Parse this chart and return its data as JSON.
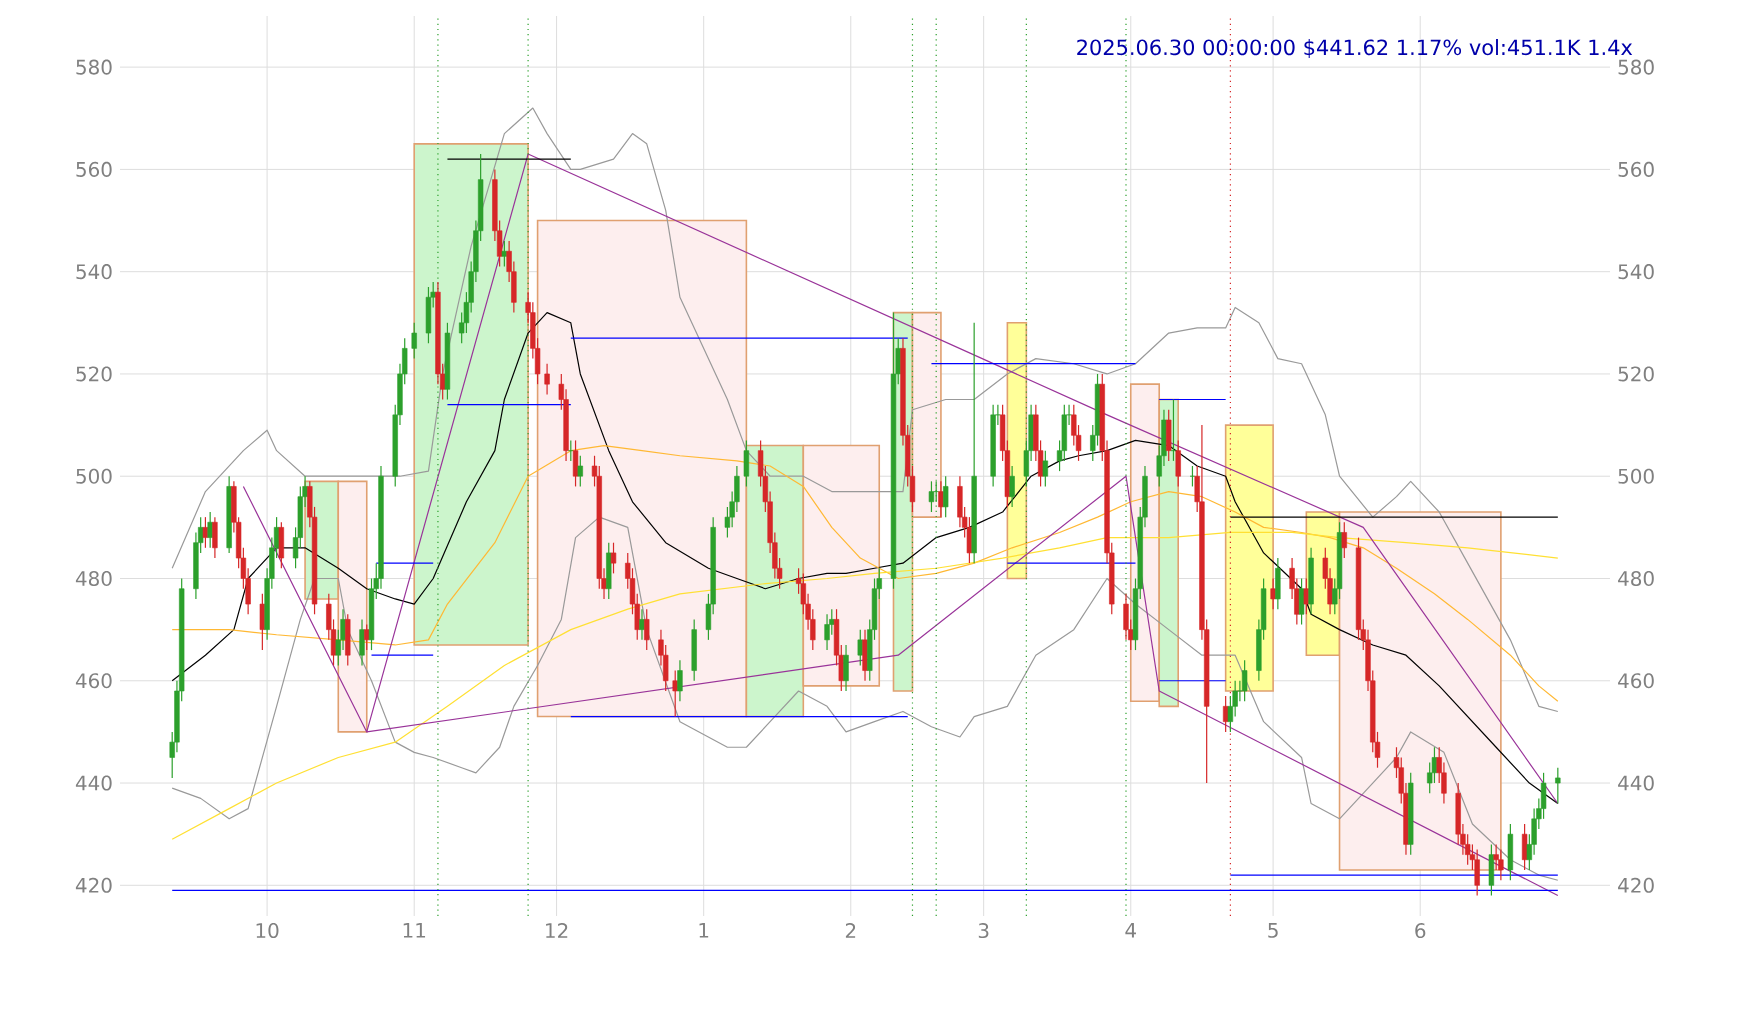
{
  "chart_data": {
    "type": "candlestick",
    "title": "2025.06.30 00:00:00 $441.62 1.17% vol:451.1K 1.4x",
    "x": [
      "2024-09-11",
      "2024-09-12",
      "2024-09-13",
      "2024-09-16",
      "2024-09-17",
      "2024-09-18",
      "2024-09-19",
      "2024-09-20",
      "2024-09-23",
      "2024-09-24",
      "2024-09-25",
      "2024-09-26",
      "2024-09-27",
      "2024-09-30",
      "2024-10-01",
      "2024-10-02",
      "2024-10-03",
      "2024-10-04",
      "2024-10-07",
      "2024-10-08",
      "2024-10-09",
      "2024-10-10",
      "2024-10-11",
      "2024-10-14",
      "2024-10-15",
      "2024-10-16",
      "2024-10-17",
      "2024-10-18",
      "2024-10-21",
      "2024-10-22",
      "2024-10-23",
      "2024-10-24",
      "2024-10-25",
      "2024-10-28",
      "2024-10-29",
      "2024-10-30",
      "2024-11-01",
      "2024-11-04",
      "2024-11-05",
      "2024-11-06",
      "2024-11-07",
      "2024-11-08",
      "2024-11-11",
      "2024-11-12",
      "2024-11-13",
      "2024-11-14",
      "2024-11-15",
      "2024-11-18",
      "2024-11-19",
      "2024-11-20",
      "2024-11-21",
      "2024-11-22",
      "2024-11-25",
      "2024-11-26",
      "2024-11-27",
      "2024-11-29",
      "2024-12-02",
      "2024-12-03",
      "2024-12-04",
      "2024-12-05",
      "2024-12-06",
      "2024-12-09",
      "2024-12-10",
      "2024-12-11",
      "2024-12-12",
      "2024-12-13",
      "2024-12-16",
      "2024-12-17",
      "2024-12-18",
      "2024-12-19",
      "2024-12-20",
      "2024-12-23",
      "2024-12-24",
      "2024-12-26",
      "2024-12-27",
      "2024-12-30",
      "2025-01-02",
      "2025-01-03",
      "2025-01-06",
      "2025-01-07",
      "2025-01-08",
      "2025-01-10",
      "2025-01-13",
      "2025-01-14",
      "2025-01-15",
      "2025-01-16",
      "2025-01-17",
      "2025-01-21",
      "2025-01-22",
      "2025-01-23",
      "2025-01-24",
      "2025-01-27",
      "2025-01-28",
      "2025-01-29",
      "2025-01-30",
      "2025-01-31",
      "2025-02-03",
      "2025-02-04",
      "2025-02-05",
      "2025-02-06",
      "2025-02-07",
      "2025-02-10",
      "2025-02-11",
      "2025-02-12",
      "2025-02-13",
      "2025-02-14",
      "2025-02-18",
      "2025-02-19",
      "2025-02-20",
      "2025-02-21",
      "2025-02-24",
      "2025-02-25",
      "2025-02-26",
      "2025-02-27",
      "2025-03-03",
      "2025-03-04",
      "2025-03-05",
      "2025-03-06",
      "2025-03-07",
      "2025-03-10",
      "2025-03-11",
      "2025-03-12",
      "2025-03-13",
      "2025-03-14",
      "2025-03-17",
      "2025-03-18",
      "2025-03-19",
      "2025-03-20",
      "2025-03-21",
      "2025-03-24",
      "2025-03-25",
      "2025-03-26",
      "2025-03-27",
      "2025-03-28",
      "2025-03-31",
      "2025-04-01",
      "2025-04-02",
      "2025-04-03",
      "2025-04-04",
      "2025-04-07",
      "2025-04-08",
      "2025-04-09",
      "2025-04-10",
      "2025-04-11",
      "2025-04-14",
      "2025-04-15",
      "2025-04-16",
      "2025-04-17",
      "2025-04-21",
      "2025-04-22",
      "2025-04-23",
      "2025-04-24",
      "2025-04-25",
      "2025-04-28",
      "2025-04-29",
      "2025-05-01",
      "2025-05-02",
      "2025-05-05",
      "2025-05-06",
      "2025-05-07",
      "2025-05-08",
      "2025-05-09",
      "2025-05-12",
      "2025-05-13",
      "2025-05-14",
      "2025-05-15",
      "2025-05-16",
      "2025-05-19",
      "2025-05-20",
      "2025-05-21",
      "2025-05-22",
      "2025-05-23",
      "2025-05-27",
      "2025-05-28",
      "2025-05-29",
      "2025-05-30",
      "2025-06-03",
      "2025-06-04",
      "2025-06-05",
      "2025-06-06",
      "2025-06-09",
      "2025-06-10",
      "2025-06-11",
      "2025-06-12",
      "2025-06-13",
      "2025-06-16",
      "2025-06-17",
      "2025-06-18",
      "2025-06-20",
      "2025-06-23",
      "2025-06-24",
      "2025-06-25",
      "2025-06-26",
      "2025-06-27",
      "2025-06-30"
    ],
    "ohlc": [
      [
        445,
        450,
        441,
        448
      ],
      [
        448,
        460,
        446,
        458
      ],
      [
        458,
        480,
        456,
        478
      ],
      [
        478,
        489,
        476,
        487
      ],
      [
        487,
        492,
        485,
        490
      ],
      [
        490,
        492,
        486,
        488
      ],
      [
        488,
        493,
        486,
        491
      ],
      [
        491,
        492,
        484,
        486
      ],
      [
        486,
        500,
        485,
        498
      ],
      [
        498,
        499,
        489,
        491
      ],
      [
        491,
        492,
        482,
        484
      ],
      [
        484,
        486,
        478,
        480
      ],
      [
        480,
        482,
        473,
        475
      ],
      [
        475,
        477,
        466,
        470
      ],
      [
        470,
        482,
        468,
        480
      ],
      [
        480,
        488,
        478,
        486
      ],
      [
        486,
        492,
        484,
        490
      ],
      [
        490,
        491,
        482,
        484
      ],
      [
        484,
        490,
        482,
        488
      ],
      [
        488,
        498,
        486,
        496
      ],
      [
        496,
        500,
        494,
        498
      ],
      [
        498,
        499,
        490,
        492
      ],
      [
        492,
        494,
        473,
        475
      ],
      [
        475,
        477,
        468,
        470
      ],
      [
        470,
        472,
        463,
        465
      ],
      [
        465,
        470,
        463,
        468
      ],
      [
        468,
        474,
        466,
        472
      ],
      [
        472,
        473,
        463,
        465
      ],
      [
        465,
        472,
        463,
        470
      ],
      [
        470,
        471,
        466,
        468
      ],
      [
        468,
        480,
        466,
        478
      ],
      [
        478,
        483,
        476,
        480
      ],
      [
        480,
        502,
        478,
        500
      ],
      [
        500,
        514,
        498,
        512
      ],
      [
        512,
        522,
        510,
        520
      ],
      [
        520,
        527,
        518,
        525
      ],
      [
        525,
        530,
        523,
        528
      ],
      [
        528,
        537,
        526,
        535
      ],
      [
        535,
        538,
        533,
        536
      ],
      [
        536,
        538,
        518,
        520
      ],
      [
        520,
        522,
        515,
        517
      ],
      [
        517,
        530,
        515,
        528
      ],
      [
        528,
        532,
        526,
        530
      ],
      [
        530,
        536,
        528,
        534
      ],
      [
        534,
        542,
        532,
        540
      ],
      [
        540,
        550,
        538,
        548
      ],
      [
        548,
        563,
        546,
        558
      ],
      [
        558,
        560,
        546,
        548
      ],
      [
        548,
        550,
        541,
        543
      ],
      [
        543,
        546,
        541,
        544
      ],
      [
        544,
        546,
        538,
        540
      ],
      [
        540,
        542,
        532,
        534
      ],
      [
        534,
        536,
        530,
        532
      ],
      [
        532,
        534,
        523,
        525
      ],
      [
        525,
        527,
        518,
        520
      ],
      [
        520,
        522,
        516,
        518
      ],
      [
        518,
        520,
        513,
        515
      ],
      [
        515,
        517,
        503,
        505
      ],
      [
        505,
        507,
        503,
        505
      ],
      [
        505,
        507,
        498,
        500
      ],
      [
        500,
        504,
        498,
        502
      ],
      [
        502,
        504,
        498,
        500
      ],
      [
        500,
        502,
        478,
        480
      ],
      [
        480,
        482,
        476,
        478
      ],
      [
        478,
        487,
        476,
        485
      ],
      [
        485,
        487,
        481,
        483
      ],
      [
        483,
        485,
        478,
        480
      ],
      [
        480,
        482,
        473,
        475
      ],
      [
        475,
        477,
        468,
        470
      ],
      [
        470,
        474,
        468,
        472
      ],
      [
        472,
        474,
        466,
        468
      ],
      [
        468,
        470,
        463,
        465
      ],
      [
        465,
        467,
        458,
        460
      ],
      [
        460,
        462,
        453,
        458
      ],
      [
        458,
        464,
        456,
        462
      ],
      [
        462,
        472,
        460,
        470
      ],
      [
        470,
        477,
        468,
        475
      ],
      [
        475,
        492,
        473,
        490
      ],
      [
        490,
        494,
        488,
        492
      ],
      [
        492,
        497,
        490,
        495
      ],
      [
        495,
        502,
        493,
        500
      ],
      [
        500,
        507,
        498,
        505
      ],
      [
        505,
        507,
        498,
        500
      ],
      [
        500,
        502,
        493,
        495
      ],
      [
        495,
        497,
        485,
        487
      ],
      [
        487,
        489,
        480,
        482
      ],
      [
        482,
        484,
        478,
        480
      ],
      [
        480,
        482,
        477,
        479
      ],
      [
        479,
        481,
        473,
        475
      ],
      [
        475,
        477,
        470,
        472
      ],
      [
        472,
        474,
        466,
        468
      ],
      [
        468,
        473,
        466,
        471
      ],
      [
        471,
        474,
        469,
        472
      ],
      [
        472,
        474,
        463,
        465
      ],
      [
        465,
        467,
        458,
        460
      ],
      [
        460,
        467,
        458,
        465
      ],
      [
        465,
        470,
        463,
        468
      ],
      [
        468,
        470,
        460,
        462
      ],
      [
        462,
        472,
        460,
        470
      ],
      [
        470,
        480,
        468,
        478
      ],
      [
        478,
        482,
        476,
        480
      ],
      [
        480,
        532,
        478,
        520
      ],
      [
        520,
        527,
        518,
        525
      ],
      [
        525,
        527,
        506,
        508
      ],
      [
        508,
        510,
        498,
        500
      ],
      [
        500,
        502,
        493,
        495
      ],
      [
        495,
        499,
        493,
        497
      ],
      [
        497,
        499,
        495,
        497
      ],
      [
        497,
        499,
        492,
        494
      ],
      [
        494,
        500,
        492,
        498
      ],
      [
        498,
        500,
        490,
        492
      ],
      [
        492,
        494,
        488,
        490
      ],
      [
        490,
        492,
        483,
        485
      ],
      [
        485,
        530,
        483,
        500
      ],
      [
        500,
        514,
        498,
        512
      ],
      [
        512,
        514,
        510,
        512
      ],
      [
        512,
        514,
        503,
        505
      ],
      [
        505,
        507,
        494,
        496
      ],
      [
        496,
        502,
        494,
        500
      ],
      [
        500,
        507,
        498,
        505
      ],
      [
        505,
        514,
        503,
        512
      ],
      [
        512,
        514,
        503,
        505
      ],
      [
        505,
        507,
        498,
        500
      ],
      [
        500,
        505,
        498,
        503
      ],
      [
        503,
        507,
        501,
        505
      ],
      [
        505,
        514,
        503,
        512
      ],
      [
        512,
        514,
        510,
        512
      ],
      [
        512,
        514,
        506,
        508
      ],
      [
        508,
        510,
        503,
        505
      ],
      [
        505,
        510,
        503,
        508
      ],
      [
        508,
        520,
        506,
        518
      ],
      [
        518,
        520,
        503,
        505
      ],
      [
        505,
        507,
        483,
        485
      ],
      [
        485,
        487,
        473,
        475
      ],
      [
        475,
        477,
        468,
        470
      ],
      [
        470,
        472,
        466,
        468
      ],
      [
        468,
        480,
        466,
        478
      ],
      [
        478,
        494,
        476,
        492
      ],
      [
        492,
        502,
        490,
        500
      ],
      [
        500,
        506,
        498,
        504
      ],
      [
        504,
        513,
        502,
        511
      ],
      [
        511,
        513,
        503,
        505
      ],
      [
        505,
        515,
        503,
        505
      ],
      [
        505,
        507,
        498,
        500
      ],
      [
        500,
        502,
        498,
        500
      ],
      [
        500,
        502,
        493,
        495
      ],
      [
        495,
        510,
        468,
        470
      ],
      [
        470,
        472,
        440,
        455
      ],
      [
        455,
        457,
        450,
        452
      ],
      [
        452,
        457,
        450,
        455
      ],
      [
        455,
        460,
        453,
        458
      ],
      [
        458,
        460,
        456,
        458
      ],
      [
        458,
        464,
        456,
        462
      ],
      [
        462,
        472,
        460,
        470
      ],
      [
        470,
        480,
        468,
        478
      ],
      [
        478,
        480,
        474,
        476
      ],
      [
        476,
        484,
        474,
        482
      ],
      [
        482,
        484,
        476,
        478
      ],
      [
        478,
        480,
        471,
        473
      ],
      [
        473,
        480,
        471,
        478
      ],
      [
        478,
        480,
        473,
        475
      ],
      [
        475,
        486,
        473,
        484
      ],
      [
        484,
        486,
        478,
        480
      ],
      [
        480,
        482,
        473,
        475
      ],
      [
        475,
        480,
        473,
        478
      ],
      [
        478,
        491,
        476,
        489
      ],
      [
        489,
        491,
        484,
        486
      ],
      [
        486,
        488,
        468,
        470
      ],
      [
        470,
        472,
        466,
        468
      ],
      [
        468,
        470,
        458,
        460
      ],
      [
        460,
        462,
        446,
        448
      ],
      [
        448,
        450,
        443,
        445
      ],
      [
        445,
        447,
        441,
        443
      ],
      [
        443,
        445,
        436,
        438
      ],
      [
        438,
        440,
        426,
        428
      ],
      [
        428,
        442,
        426,
        440
      ],
      [
        440,
        444,
        438,
        442
      ],
      [
        442,
        447,
        440,
        445
      ],
      [
        445,
        447,
        440,
        442
      ],
      [
        442,
        444,
        436,
        438
      ],
      [
        438,
        440,
        428,
        430
      ],
      [
        430,
        432,
        426,
        428
      ],
      [
        428,
        430,
        424,
        426
      ],
      [
        426,
        428,
        423,
        425
      ],
      [
        425,
        427,
        418,
        420
      ],
      [
        420,
        428,
        418,
        426
      ],
      [
        426,
        428,
        423,
        425
      ],
      [
        425,
        427,
        421,
        423
      ],
      [
        423,
        432,
        421,
        430
      ],
      [
        430,
        432,
        423,
        425
      ],
      [
        425,
        430,
        423,
        428
      ],
      [
        428,
        435,
        426,
        433
      ],
      [
        433,
        437,
        431,
        435
      ],
      [
        435,
        442,
        433,
        440
      ],
      [
        440,
        443,
        436,
        441
      ]
    ],
    "series": [
      {
        "type": "area",
        "color": "#ccf5cc",
        "x": [
          "2024-10-09",
          "2024-10-16",
          "2024-10-16",
          "2024-10-09"
        ],
        "values": [
          499,
          499,
          476,
          476
        ]
      },
      {
        "type": "area",
        "color": "#fdeeee",
        "x": [
          "2024-10-16",
          "2024-10-22",
          "2024-10-22",
          "2024-10-16"
        ],
        "values": [
          499,
          499,
          450,
          450
        ]
      },
      {
        "type": "area",
        "color": "#ccf5cc",
        "x": [
          "2024-11-01",
          "2024-11-25",
          "2024-11-25",
          "2024-11-01"
        ],
        "values": [
          565,
          565,
          467,
          467
        ]
      },
      {
        "type": "area",
        "color": "#fdeeee",
        "x": [
          "2024-11-27",
          "2025-01-10",
          "2025-01-10",
          "2024-11-27"
        ],
        "values": [
          550,
          550,
          453,
          453
        ]
      },
      {
        "type": "area",
        "color": "#ccf5cc",
        "x": [
          "2025-01-10",
          "2025-01-22",
          "2025-01-22",
          "2025-01-10"
        ],
        "values": [
          506,
          506,
          453,
          453
        ]
      },
      {
        "type": "area",
        "color": "#fdeeee",
        "x": [
          "2025-01-22",
          "2025-02-07",
          "2025-02-07",
          "2025-01-22"
        ],
        "values": [
          506,
          506,
          459,
          459
        ]
      },
      {
        "type": "area",
        "color": "#ccf5cc",
        "x": [
          "2025-02-10",
          "2025-02-14",
          "2025-02-14",
          "2025-02-10"
        ],
        "values": [
          532,
          532,
          458,
          458
        ]
      },
      {
        "type": "area",
        "color": "#fdeeee",
        "x": [
          "2025-02-14",
          "2025-02-20",
          "2025-02-20",
          "2025-02-14"
        ],
        "values": [
          532,
          532,
          492,
          492
        ]
      },
      {
        "type": "area",
        "color": "#ffff99",
        "x": [
          "2025-03-06",
          "2025-03-10",
          "2025-03-10",
          "2025-03-06"
        ],
        "values": [
          530,
          530,
          480,
          480
        ]
      },
      {
        "type": "area",
        "color": "#fdeeee",
        "x": [
          "2025-04-01",
          "2025-04-07",
          "2025-04-07",
          "2025-04-01"
        ],
        "values": [
          518,
          518,
          456,
          456
        ]
      },
      {
        "type": "area",
        "color": "#ccf5cc",
        "x": [
          "2025-04-07",
          "2025-04-11",
          "2025-04-11",
          "2025-04-07"
        ],
        "values": [
          515,
          515,
          455,
          455
        ]
      },
      {
        "type": "area",
        "color": "#ffff99",
        "x": [
          "2025-04-21",
          "2025-05-01",
          "2025-05-01",
          "2025-04-21"
        ],
        "values": [
          510,
          510,
          458,
          458
        ]
      },
      {
        "type": "area",
        "color": "#ffff99",
        "x": [
          "2025-05-08",
          "2025-05-15",
          "2025-05-15",
          "2025-05-08"
        ],
        "values": [
          493,
          493,
          465,
          465
        ]
      },
      {
        "type": "area",
        "color": "#fdeeee",
        "x": [
          "2025-05-15",
          "2025-06-18",
          "2025-06-18",
          "2025-05-15"
        ],
        "values": [
          493,
          493,
          423,
          423
        ]
      },
      {
        "type": "line",
        "color": "#999999",
        "x": [
          "2024-09-11",
          "2024-09-18",
          "2024-09-26",
          "2024-10-01",
          "2024-10-03",
          "2024-10-09",
          "2024-10-17",
          "2024-10-23",
          "2024-10-29",
          "2024-11-04",
          "2024-11-07",
          "2024-11-13",
          "2024-11-20",
          "2024-11-26",
          "2024-11-29",
          "2024-12-04",
          "2024-12-06",
          "2024-12-13",
          "2024-12-17",
          "2024-12-20",
          "2024-12-24",
          "2024-12-27",
          "2025-01-06",
          "2025-01-10",
          "2025-01-15",
          "2025-01-22",
          "2025-01-28",
          "2025-01-31",
          "2025-02-06",
          "2025-02-12",
          "2025-02-14",
          "2025-02-21",
          "2025-02-27",
          "2025-03-06",
          "2025-03-12",
          "2025-03-20",
          "2025-03-27",
          "2025-04-02",
          "2025-04-09",
          "2025-04-15",
          "2025-04-21",
          "2025-04-23",
          "2025-04-28",
          "2025-05-02",
          "2025-05-07",
          "2025-05-12",
          "2025-05-15",
          "2025-05-22",
          "2025-05-27",
          "2025-05-30",
          "2025-06-05",
          "2025-06-11",
          "2025-06-20",
          "2025-06-26",
          "2025-06-30"
        ],
        "values": [
          482,
          497,
          505,
          509,
          505,
          500,
          500,
          500,
          500,
          501,
          520,
          545,
          567,
          572,
          567,
          560,
          560,
          562,
          567,
          565,
          552,
          535,
          515,
          505,
          500,
          500,
          497,
          497,
          497,
          497,
          513,
          515,
          515,
          520,
          523,
          522,
          520,
          522,
          528,
          529,
          529,
          533,
          530,
          523,
          522,
          512,
          500,
          492,
          496,
          499,
          493,
          483,
          468,
          455,
          454
        ]
      },
      {
        "type": "line",
        "color": "#999999",
        "x": [
          "2024-09-11",
          "2024-09-17",
          "2024-09-23",
          "2024-09-27",
          "2024-10-03",
          "2024-10-08",
          "2024-10-11",
          "2024-10-16",
          "2024-10-18",
          "2024-10-23",
          "2024-10-28",
          "2024-11-01",
          "2024-11-05",
          "2024-11-11",
          "2024-11-14",
          "2024-11-19",
          "2024-11-22",
          "2024-11-27",
          "2024-12-02",
          "2024-12-05",
          "2024-12-10",
          "2024-12-16",
          "2024-12-20",
          "2024-12-27",
          "2025-01-06",
          "2025-01-10",
          "2025-01-15",
          "2025-01-21",
          "2025-01-27",
          "2025-01-31",
          "2025-02-06",
          "2025-02-12",
          "2025-02-18",
          "2025-02-24",
          "2025-02-27",
          "2025-03-06",
          "2025-03-12",
          "2025-03-20",
          "2025-03-27",
          "2025-04-02",
          "2025-04-09",
          "2025-04-16",
          "2025-04-23",
          "2025-04-29",
          "2025-05-07",
          "2025-05-09",
          "2025-05-15",
          "2025-05-22",
          "2025-05-27",
          "2025-05-30",
          "2025-06-06",
          "2025-06-12",
          "2025-06-20",
          "2025-06-26",
          "2025-06-30"
        ],
        "values": [
          439,
          437,
          433,
          435,
          455,
          472,
          480,
          480,
          470,
          460,
          448,
          446,
          445,
          443,
          442,
          447,
          455,
          463,
          472,
          488,
          492,
          490,
          470,
          452,
          447,
          447,
          452,
          458,
          455,
          450,
          452,
          454,
          451,
          449,
          453,
          455,
          465,
          470,
          480,
          475,
          470,
          465,
          465,
          452,
          445,
          436,
          433,
          440,
          445,
          450,
          446,
          432,
          425,
          422,
          421
        ]
      },
      {
        "type": "line",
        "color": "#000000",
        "x": [
          "2024-09-11",
          "2024-09-18",
          "2024-09-24",
          "2024-09-27",
          "2024-10-03",
          "2024-10-09",
          "2024-10-16",
          "2024-10-22",
          "2024-10-28",
          "2024-11-01",
          "2024-11-05",
          "2024-11-12",
          "2024-11-18",
          "2024-11-20",
          "2024-11-25",
          "2024-11-29",
          "2024-12-04",
          "2024-12-06",
          "2024-12-12",
          "2024-12-17",
          "2024-12-24",
          "2025-01-02",
          "2025-01-08",
          "2025-01-14",
          "2025-01-21",
          "2025-01-27",
          "2025-01-31",
          "2025-02-06",
          "2025-02-12",
          "2025-02-19",
          "2025-02-26",
          "2025-03-05",
          "2025-03-11",
          "2025-03-17",
          "2025-03-21",
          "2025-03-27",
          "2025-04-02",
          "2025-04-09",
          "2025-04-15",
          "2025-04-21",
          "2025-04-23",
          "2025-04-29",
          "2025-05-07",
          "2025-05-09",
          "2025-05-15",
          "2025-05-22",
          "2025-05-29",
          "2025-06-05",
          "2025-06-11",
          "2025-06-17",
          "2025-06-24",
          "2025-06-30"
        ],
        "values": [
          460,
          465,
          470,
          480,
          486,
          486,
          482,
          478,
          476,
          475,
          480,
          495,
          505,
          515,
          528,
          532,
          530,
          520,
          505,
          495,
          487,
          482,
          480,
          478,
          480,
          481,
          481,
          482,
          483,
          488,
          490,
          493,
          500,
          503,
          504,
          505,
          507,
          506,
          502,
          500,
          495,
          485,
          478,
          473,
          470,
          467,
          465,
          459,
          453,
          447,
          440,
          436
        ]
      },
      {
        "type": "line",
        "color": "#ffb833",
        "x": [
          "2024-09-11",
          "2024-09-23",
          "2024-10-03",
          "2024-10-16",
          "2024-10-28",
          "2024-11-04",
          "2024-11-08",
          "2024-11-18",
          "2024-11-25",
          "2024-12-04",
          "2024-12-11",
          "2024-12-19",
          "2024-12-27",
          "2025-01-08",
          "2025-01-15",
          "2025-01-22",
          "2025-01-28",
          "2025-02-03",
          "2025-02-11",
          "2025-02-19",
          "2025-02-27",
          "2025-03-07",
          "2025-03-17",
          "2025-03-25",
          "2025-04-01",
          "2025-04-09",
          "2025-04-16",
          "2025-04-23",
          "2025-04-29",
          "2025-05-07",
          "2025-05-13",
          "2025-05-20",
          "2025-05-27",
          "2025-06-04",
          "2025-06-11",
          "2025-06-20",
          "2025-06-26",
          "2025-06-30"
        ],
        "values": [
          470,
          470,
          469,
          468,
          467,
          468,
          475,
          487,
          500,
          505,
          506,
          505,
          504,
          503,
          502,
          498,
          490,
          484,
          480,
          481,
          483,
          486,
          489,
          492,
          495,
          497,
          496,
          493,
          490,
          489,
          488,
          486,
          482,
          477,
          472,
          465,
          459,
          456
        ]
      },
      {
        "type": "line",
        "color": "#ffe033",
        "x": [
          "2024-09-11",
          "2024-09-23",
          "2024-10-03",
          "2024-10-16",
          "2024-10-28",
          "2024-11-08",
          "2024-11-20",
          "2024-12-04",
          "2024-12-16",
          "2024-12-27",
          "2025-01-14",
          "2025-01-27",
          "2025-02-06",
          "2025-02-19",
          "2025-03-05",
          "2025-03-17",
          "2025-03-27",
          "2025-04-09",
          "2025-04-22",
          "2025-05-05",
          "2025-05-15",
          "2025-05-29",
          "2025-06-11",
          "2025-06-30"
        ],
        "values": [
          429,
          435,
          440,
          445,
          448,
          455,
          463,
          470,
          474,
          477,
          479,
          480,
          481,
          482,
          484,
          486,
          488,
          488,
          489,
          489,
          488,
          487,
          486,
          484
        ]
      },
      {
        "type": "line",
        "color": "#993399",
        "x": [
          "2024-09-26",
          "2024-10-22",
          "2024-11-25"
        ],
        "values": [
          498,
          450,
          563
        ]
      },
      {
        "type": "line",
        "color": "#993399",
        "x": [
          "2024-11-25",
          "2025-03-27",
          "2025-05-20",
          "2025-06-30"
        ],
        "values": [
          563,
          512,
          490,
          436
        ]
      },
      {
        "type": "line",
        "color": "#993399",
        "x": [
          "2024-10-22",
          "2025-02-11",
          "2025-03-31",
          "2025-04-07",
          "2025-06-30"
        ],
        "values": [
          450,
          465,
          500,
          458,
          418
        ]
      },
      {
        "type": "line",
        "color": "#0000ff",
        "x": [
          "2024-10-24",
          "2024-11-05"
        ],
        "values": [
          483,
          483
        ]
      },
      {
        "type": "line",
        "color": "#0000ff",
        "x": [
          "2024-10-23",
          "2024-11-05"
        ],
        "values": [
          465,
          465
        ]
      },
      {
        "type": "line",
        "color": "#000000",
        "x": [
          "2024-11-08",
          "2024-12-04"
        ],
        "values": [
          562,
          562
        ]
      },
      {
        "type": "line",
        "color": "#0000ff",
        "x": [
          "2024-11-08",
          "2024-12-04"
        ],
        "values": [
          514,
          514
        ]
      },
      {
        "type": "line",
        "color": "#0000ff",
        "x": [
          "2024-12-04",
          "2025-02-13"
        ],
        "values": [
          527,
          527
        ]
      },
      {
        "type": "line",
        "color": "#0000ff",
        "x": [
          "2024-12-04",
          "2025-02-13"
        ],
        "values": [
          453,
          453
        ]
      },
      {
        "type": "line",
        "color": "#0000ff",
        "x": [
          "2025-02-18",
          "2025-04-02"
        ],
        "values": [
          522,
          522
        ]
      },
      {
        "type": "line",
        "color": "#0000ff",
        "x": [
          "2025-03-06",
          "2025-04-02"
        ],
        "values": [
          483,
          483
        ]
      },
      {
        "type": "line",
        "color": "#0000ff",
        "x": [
          "2025-04-07",
          "2025-04-21"
        ],
        "values": [
          515,
          515
        ]
      },
      {
        "type": "line",
        "color": "#0000ff",
        "x": [
          "2025-04-07",
          "2025-04-21"
        ],
        "values": [
          460,
          460
        ]
      },
      {
        "type": "line",
        "color": "#000000",
        "x": [
          "2025-04-22",
          "2025-06-30"
        ],
        "values": [
          492,
          492
        ]
      },
      {
        "type": "line",
        "color": "#0000ff",
        "x": [
          "2025-04-22",
          "2025-06-30"
        ],
        "values": [
          422,
          422
        ]
      },
      {
        "type": "line",
        "color": "#0000ff",
        "x": [
          "2024-09-11",
          "2025-06-30"
        ],
        "values": [
          419,
          419
        ]
      }
    ],
    "ref_lines": [
      {
        "axis": "x",
        "value": "2024-11-06",
        "color": "#2ca02c",
        "line_style": "dotted"
      },
      {
        "axis": "x",
        "value": "2024-11-25",
        "color": "#2ca02c",
        "line_style": "dotted"
      },
      {
        "axis": "x",
        "value": "2025-02-14",
        "color": "#2ca02c",
        "line_style": "dotted"
      },
      {
        "axis": "x",
        "value": "2025-02-19",
        "color": "#2ca02c",
        "line_style": "dotted"
      },
      {
        "axis": "x",
        "value": "2025-03-10",
        "color": "#2ca02c",
        "line_style": "dotted"
      },
      {
        "axis": "x",
        "value": "2025-03-31",
        "color": "#2ca02c",
        "line_style": "dotted"
      },
      {
        "axis": "x",
        "value": "2025-04-22",
        "color": "#d62728",
        "line_style": "dotted"
      }
    ],
    "xlim": [
      "2024-09-11",
      "2025-06-30"
    ],
    "ylim": [
      414,
      590
    ],
    "y2lim": [
      414,
      590
    ],
    "xticks": [
      {
        "value": "2024-10-01",
        "label": "10"
      },
      {
        "value": "2024-11-01",
        "label": "11"
      },
      {
        "value": "2024-12-01",
        "label": "12"
      },
      {
        "value": "2025-01-01",
        "label": "1"
      },
      {
        "value": "2025-02-01",
        "label": "2"
      },
      {
        "value": "2025-03-01",
        "label": "3"
      },
      {
        "value": "2025-04-01",
        "label": "4"
      },
      {
        "value": "2025-05-01",
        "label": "5"
      },
      {
        "value": "2025-06-01",
        "label": "6"
      }
    ],
    "yticks": [
      420,
      440,
      460,
      480,
      500,
      520,
      540,
      560,
      580
    ],
    "y2ticks": [
      420,
      440,
      460,
      480,
      500,
      520,
      540,
      560,
      580
    ],
    "grid": true
  }
}
